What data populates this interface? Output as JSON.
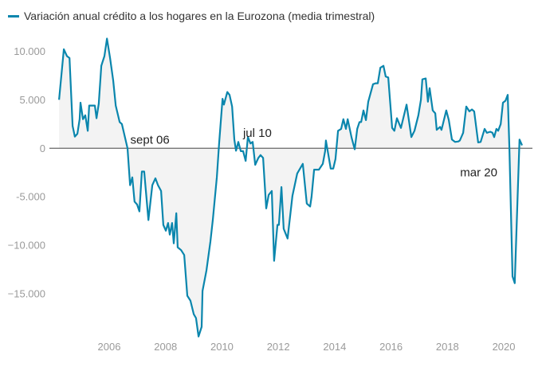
{
  "chart_data": {
    "type": "area",
    "title": "",
    "legend": [
      {
        "label": "Variación anual crédito a los hogares en la Eurozona (media trimestral)",
        "color": "#0a86ad"
      }
    ],
    "legend_position": "top-left",
    "xlabel": "",
    "ylabel": "",
    "xlim": [
      2004,
      2021
    ],
    "ylim": [
      -20000,
      12000
    ],
    "x_ticks": [
      2006,
      2008,
      2010,
      2012,
      2014,
      2016,
      2018,
      2020
    ],
    "x_tick_labels": [
      "2006",
      "2008",
      "2010",
      "2012",
      "2014",
      "2016",
      "2018",
      "2020"
    ],
    "y_ticks": [
      10000,
      5000,
      0,
      -5000,
      -10000,
      -15000
    ],
    "y_tick_labels": [
      "10.000",
      "5.000",
      "0",
      "-5.000",
      "−10.000",
      "−15.000"
    ],
    "grid": false,
    "fill_color": "#f3f3f3",
    "line_color": "#0a86ad",
    "annotations": [
      {
        "text": "sept 06",
        "x": 2006.75,
        "y": 900
      },
      {
        "text": "jul 10",
        "x": 2010.75,
        "y": 1600
      },
      {
        "text": "mar 20",
        "x": 2018.45,
        "y": -2500
      }
    ],
    "series": [
      {
        "name": "Variación anual crédito a los hogares en la Eurozona (media trimestral)",
        "x": [
          2004.22,
          2004.39,
          2004.5,
          2004.59,
          2004.7,
          2004.78,
          2004.87,
          2004.95,
          2004.98,
          2005.07,
          2005.15,
          2005.24,
          2005.29,
          2005.41,
          2005.49,
          2005.55,
          2005.63,
          2005.72,
          2005.83,
          2005.92,
          2006.03,
          2006.14,
          2006.23,
          2006.37,
          2006.45,
          2006.65,
          2006.74,
          2006.82,
          2006.9,
          2006.99,
          2007.07,
          2007.16,
          2007.24,
          2007.39,
          2007.53,
          2007.64,
          2007.73,
          2007.84,
          2007.92,
          2008.01,
          2008.09,
          2008.15,
          2008.23,
          2008.29,
          2008.38,
          2008.43,
          2008.55,
          2008.66,
          2008.77,
          2008.88,
          2009.0,
          2009.08,
          2009.17,
          2009.28,
          2009.31,
          2009.45,
          2009.59,
          2009.68,
          2009.82,
          2009.9,
          2010.02,
          2010.07,
          2010.19,
          2010.27,
          2010.36,
          2010.44,
          2010.5,
          2010.58,
          2010.67,
          2010.75,
          2010.84,
          2010.92,
          2011.01,
          2011.09,
          2011.18,
          2011.29,
          2011.37,
          2011.46,
          2011.57,
          2011.66,
          2011.77,
          2011.85,
          2011.97,
          2012.02,
          2012.11,
          2012.19,
          2012.33,
          2012.5,
          2012.67,
          2012.87,
          2013.01,
          2013.13,
          2013.18,
          2013.27,
          2013.44,
          2013.58,
          2013.66,
          2013.69,
          2013.86,
          2013.95,
          2014.03,
          2014.12,
          2014.23,
          2014.31,
          2014.4,
          2014.46,
          2014.6,
          2014.71,
          2014.8,
          2014.88,
          2014.94,
          2015.02,
          2015.11,
          2015.19,
          2015.36,
          2015.45,
          2015.53,
          2015.62,
          2015.73,
          2015.81,
          2015.9,
          2016.04,
          2016.12,
          2016.21,
          2016.35,
          2016.55,
          2016.72,
          2016.83,
          2016.97,
          2017.06,
          2017.11,
          2017.23,
          2017.31,
          2017.37,
          2017.48,
          2017.57,
          2017.62,
          2017.74,
          2017.79,
          2017.96,
          2018.05,
          2018.16,
          2018.27,
          2018.39,
          2018.44,
          2018.56,
          2018.67,
          2018.78,
          2018.87,
          2018.95,
          2019.09,
          2019.18,
          2019.32,
          2019.4,
          2019.52,
          2019.6,
          2019.66,
          2019.74,
          2019.8,
          2019.89,
          2019.97,
          2020.06,
          2020.14,
          2020.2,
          2020.31,
          2020.39,
          2020.56,
          2020.65
        ],
        "y": [
          5000,
          10200,
          9500,
          9300,
          2300,
          1200,
          1500,
          3000,
          4700,
          3000,
          3400,
          1800,
          4400,
          4400,
          4400,
          3100,
          4600,
          8500,
          9500,
          11300,
          9300,
          7000,
          4400,
          2700,
          2500,
          0,
          -3800,
          -3000,
          -5500,
          -5800,
          -6500,
          -2400,
          -2400,
          -7400,
          -3800,
          -3100,
          -3800,
          -4400,
          -7900,
          -8500,
          -7700,
          -8900,
          -7700,
          -9800,
          -6700,
          -10200,
          -10500,
          -11000,
          -15200,
          -15700,
          -17100,
          -17500,
          -19400,
          -18400,
          -14700,
          -12600,
          -9600,
          -7300,
          -2950,
          500,
          5100,
          4500,
          5800,
          5500,
          4300,
          900,
          -250,
          650,
          -300,
          -300,
          -1300,
          1150,
          500,
          650,
          -1700,
          -1000,
          -700,
          -1000,
          -6200,
          -4800,
          -4400,
          -11600,
          -7900,
          -7900,
          -4000,
          -8300,
          -9300,
          -4900,
          -2600,
          -1600,
          -5700,
          -6000,
          -5000,
          -2200,
          -2200,
          -1600,
          -300,
          800,
          -2100,
          -2100,
          -1100,
          1800,
          2000,
          3000,
          2000,
          3000,
          1100,
          -100,
          2000,
          2700,
          2700,
          3900,
          2900,
          4800,
          6600,
          6700,
          6700,
          8300,
          8500,
          7400,
          7300,
          2100,
          1800,
          3100,
          2100,
          4500,
          1150,
          1800,
          3400,
          5000,
          7100,
          7200,
          4800,
          6200,
          3900,
          3600,
          1900,
          2200,
          1900,
          3900,
          2900,
          900,
          650,
          700,
          800,
          1600,
          4300,
          3800,
          4000,
          3800,
          600,
          650,
          2000,
          1600,
          1700,
          1600,
          1150,
          2000,
          1800,
          2500,
          4700,
          4900,
          5500,
          0,
          -13200,
          -13900,
          900,
          300
        ]
      }
    ]
  }
}
